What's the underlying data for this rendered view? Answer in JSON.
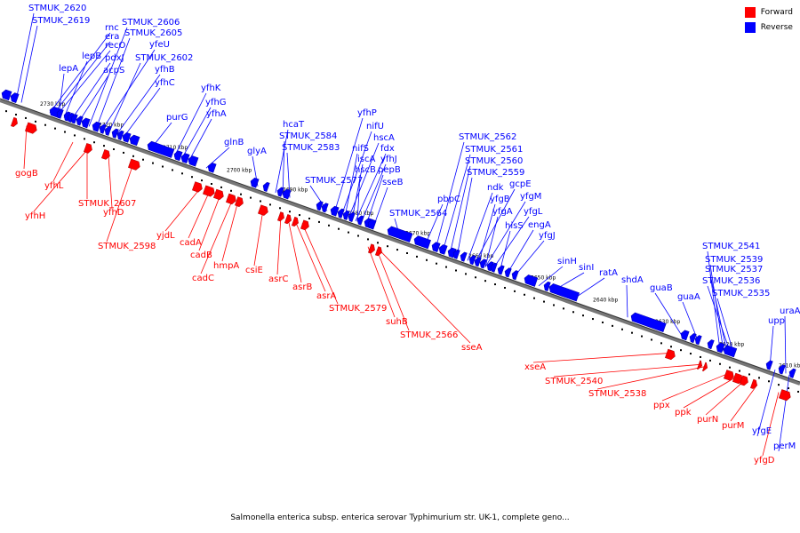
{
  "legend": {
    "forward_label": "Forward",
    "reverse_label": "Reverse",
    "forward_color": "#ff0000",
    "reverse_color": "#0000ff"
  },
  "caption": "Salmonella enterica subsp. enterica serovar Typhimurium str. UK-1, complete geno...",
  "scale_labels": [
    "2730 kbp",
    "2720 kbp",
    "2710 kbp",
    "2700 kbp",
    "2690 kbp",
    "2680 kbp",
    "2670 kbp",
    "2660 kbp",
    "2650 kbp",
    "2640 kbp",
    "2630 kbp",
    "2620 kbp",
    "2610 kbp"
  ],
  "reverse_genes": [
    "STMUK_2620",
    "STMUK_2619",
    "rnc",
    "era",
    "recO",
    "lepB",
    "pdxJ",
    "acpS",
    "lepA",
    "STMUK_2606",
    "STMUK_2605",
    "yfeU",
    "STMUK_2602",
    "yfhB",
    "yfhC",
    "yfhK",
    "yfhG",
    "yfhA",
    "purG",
    "glnB",
    "glyA",
    "hcaT",
    "STMUK_2584",
    "STMUK_2583",
    "STMUK_2577",
    "yfhP",
    "nifU",
    "hscA",
    "nifS",
    "fdx",
    "iscA",
    "yfhJ",
    "hscB",
    "pepB",
    "sseB",
    "STMUK_2564",
    "pbpC",
    "STMUK_2562",
    "STMUK_2561",
    "STMUK_2560",
    "STMUK_2559",
    "ndk",
    "gcpE",
    "yfgB",
    "yfgM",
    "yfgA",
    "yfgL",
    "hisS",
    "engA",
    "yfgJ",
    "sinH",
    "sinI",
    "ratA",
    "shdA",
    "guaB",
    "guaA",
    "STMUK_2541",
    "STMUK_2539",
    "STMUK_2537",
    "STMUK_2536",
    "STMUK_2535",
    "upp",
    "uraA",
    "yfgE",
    "perM"
  ],
  "forward_genes": [
    "gogB",
    "yfhL",
    "yfhH",
    "STMUK_2607",
    "yfhD",
    "STMUK_2598",
    "yjdL",
    "cadA",
    "cadB",
    "cadC",
    "hmpA",
    "csiE",
    "asrC",
    "asrB",
    "asrA",
    "STMUK_2579",
    "suhB",
    "STMUK_2566",
    "sseA",
    "xseA",
    "STMUK_2540",
    "STMUK_2538",
    "ppx",
    "ppk",
    "purN",
    "purM",
    "yfgD"
  ]
}
